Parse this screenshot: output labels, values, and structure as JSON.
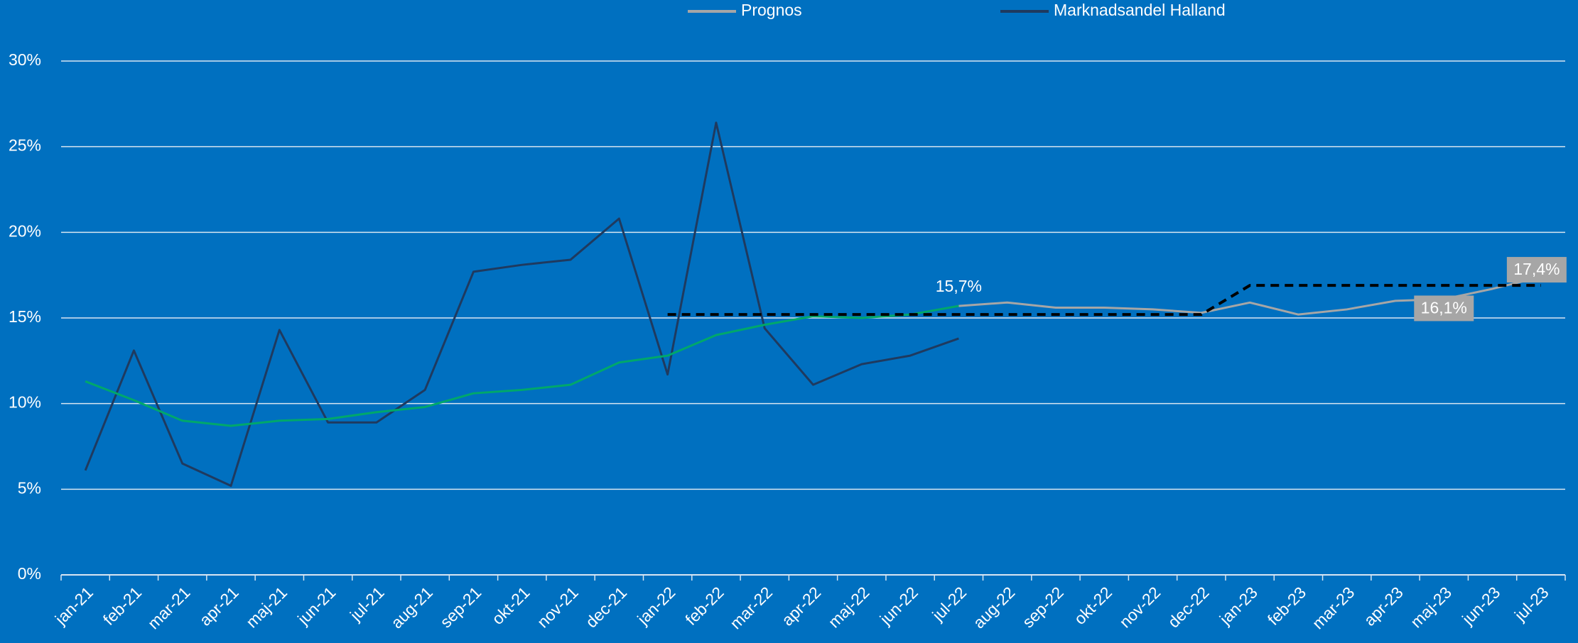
{
  "chart_data": {
    "type": "line",
    "categories": [
      "jan-21",
      "feb-21",
      "mar-21",
      "apr-21",
      "maj-21",
      "jun-21",
      "jul-21",
      "aug-21",
      "sep-21",
      "okt-21",
      "nov-21",
      "dec-21",
      "jan-22",
      "feb-22",
      "mar-22",
      "apr-22",
      "maj-22",
      "jun-22",
      "jul-22",
      "aug-22",
      "sep-22",
      "okt-22",
      "nov-22",
      "dec-22",
      "jan-23",
      "feb-23",
      "mar-23",
      "apr-23",
      "maj-23",
      "jun-23",
      "jul-23"
    ],
    "series": [
      {
        "name": "Prognos",
        "color": "#a6a6a6",
        "values": [
          null,
          null,
          null,
          null,
          null,
          null,
          null,
          null,
          null,
          null,
          null,
          null,
          null,
          null,
          null,
          null,
          null,
          null,
          15.7,
          15.9,
          15.6,
          15.6,
          15.5,
          15.3,
          15.9,
          15.2,
          15.5,
          16.0,
          16.1,
          16.7,
          17.4
        ],
        "value_labels": [
          null,
          null,
          null,
          null,
          null,
          null,
          null,
          null,
          null,
          null,
          null,
          null,
          null,
          null,
          null,
          null,
          null,
          null,
          null,
          null,
          null,
          null,
          null,
          null,
          null,
          null,
          null,
          null,
          "16,1%",
          null,
          "17,4%"
        ]
      },
      {
        "name": "Marknadsandel Halland",
        "color": "#1f3a5f",
        "values": [
          6.1,
          13.1,
          6.5,
          5.2,
          14.3,
          8.9,
          8.9,
          10.8,
          17.7,
          18.1,
          18.4,
          20.8,
          11.7,
          26.4,
          14.4,
          11.1,
          12.3,
          12.8,
          13.8,
          null,
          null,
          null,
          null,
          null,
          null,
          null,
          null,
          null,
          null,
          null,
          null
        ]
      },
      {
        "color": "#00a86b",
        "values": [
          11.3,
          10.2,
          9.0,
          8.7,
          9.0,
          9.1,
          9.5,
          9.8,
          10.6,
          10.8,
          11.1,
          12.4,
          12.8,
          14.0,
          14.6,
          15.1,
          15.0,
          15.2,
          15.7,
          null,
          null,
          null,
          null,
          null,
          null,
          null,
          null,
          null,
          null,
          null,
          null
        ],
        "value_labels": [
          null,
          null,
          null,
          null,
          null,
          null,
          null,
          null,
          null,
          null,
          null,
          null,
          null,
          null,
          null,
          null,
          null,
          null,
          "15,7%",
          null,
          null,
          null,
          null,
          null,
          null,
          null,
          null,
          null,
          null,
          null,
          null
        ]
      },
      {
        "color": "#000000",
        "dashed": true,
        "values": [
          null,
          null,
          null,
          null,
          null,
          null,
          null,
          null,
          null,
          null,
          null,
          null,
          15.2,
          15.2,
          15.2,
          15.2,
          15.2,
          15.2,
          15.2,
          15.2,
          15.2,
          15.2,
          15.2,
          15.2,
          16.9,
          16.9,
          16.9,
          16.9,
          16.9,
          16.9,
          16.9
        ]
      }
    ],
    "ylim": [
      0,
      30
    ],
    "yticks": [
      {
        "value": 0,
        "label": "0%"
      },
      {
        "value": 5,
        "label": "5%"
      },
      {
        "value": 10,
        "label": "10%"
      },
      {
        "value": 15,
        "label": "15%"
      },
      {
        "value": 20,
        "label": "20%"
      },
      {
        "value": 25,
        "label": "25%"
      },
      {
        "value": 30,
        "label": "30%"
      }
    ],
    "grid": true,
    "legend": "top"
  }
}
